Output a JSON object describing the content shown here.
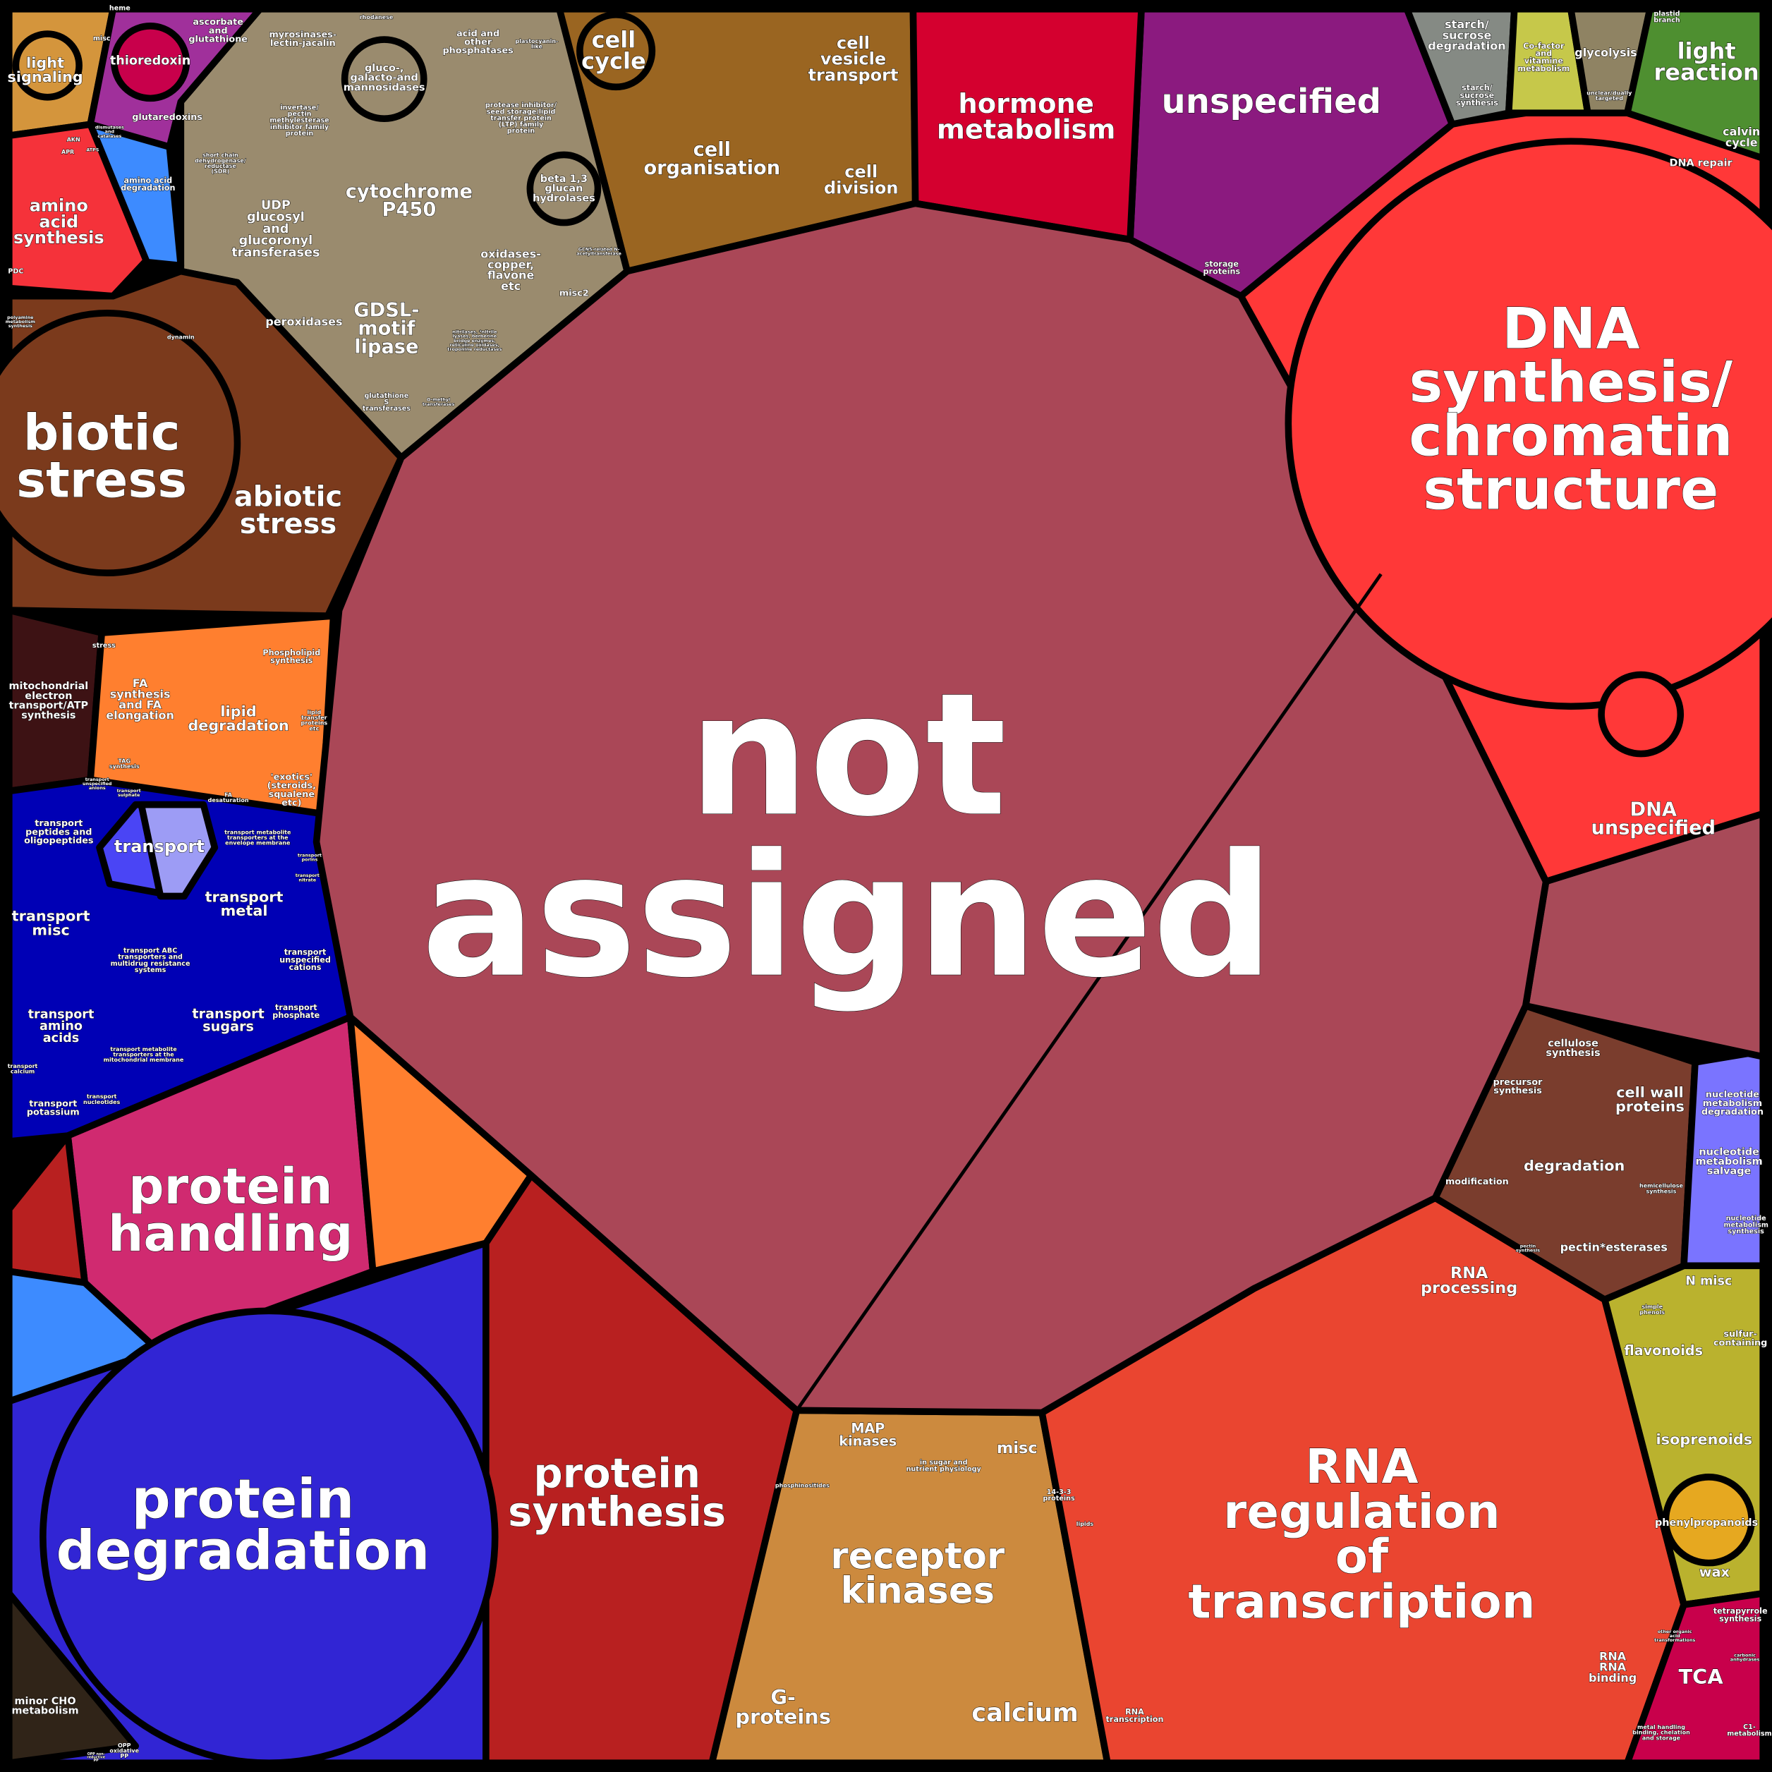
{
  "title": "MapMan functional bin Voronoi treemap",
  "colors": {
    "not_assigned": "#aa4757",
    "dna": "#ff3838",
    "dna_unspecified_band": "#a84a58",
    "unspecified": "#8b1a7f",
    "hormone": "#d4002f",
    "cell": "#9a6521",
    "misc": "#9a8b6e",
    "light_signaling": "#d4953c",
    "redox": "#a0309b",
    "amino_acid_synthesis": "#f5323a",
    "amino_acid_degradation": "#3d8bff",
    "stress": "#7b3a1c",
    "mito": "#3d1214",
    "lipid": "#ff7f2f",
    "transport": "#0000b5",
    "transport_core_a": "#4a45f5",
    "transport_core_b": "#9d9cf5",
    "protein_handling": "#d02a70",
    "protein_degradation": "#3125d4",
    "protein_synthesis": "#b82020",
    "signalling": "#cc8a3e",
    "rna": "#ea4530",
    "cell_wall": "#7a3d2d",
    "nucleotide": "#7a74ff",
    "secondary": "#bab22e",
    "tca": "#c8004b",
    "photosynthesis": "#4e8f30",
    "starch": "#858a84",
    "cofactor": "#c6c84a",
    "glycolysis": "#8f8363",
    "minor_cho": "#302418",
    "opp": "#b04f5c",
    "phenylpropanoids": "#e6a820",
    "tetrapyrrole": "#2f3a22",
    "sulfur": "#8b8b0a"
  },
  "labels": {
    "not_assigned": "not\nassigned",
    "dna_synthesis": "DNA\nsynthesis/\nchromatin\nstructure",
    "dna_unspecified": "DNA\nunspecified",
    "dna_repair": "DNA repair",
    "unspecified": "unspecified",
    "hormone_metabolism": "hormone\nmetabolism",
    "cell_cycle": "cell\ncycle",
    "cell_vesicle_transport": "cell\nvesicle\ntransport",
    "cell_organisation": "cell\norganisation",
    "cell_division": "cell\ndivision",
    "starch_degradation": "starch/\nsucrose\ndegradation",
    "starch_synthesis": "starch/\nsucrose\nsynthesis",
    "cofactor": "Co-factor\nand\nvitamine\nmetabolism",
    "glycolysis": "glycolysis",
    "plastid_branch": "plastid\nbranch",
    "unclear_targeted": "unclear/dually\ntargeted",
    "light_reaction": "light\nreaction",
    "calvin_cycle": "calvin\ncycle",
    "storage_proteins": "storage\nproteins",
    "light_signaling": "light\nsignaling",
    "heme": "heme",
    "misc_redox": "misc",
    "thioredoxin": "thioredoxin",
    "ascorbate": "ascorbate\nand\nglutathione",
    "glutaredoxins": "glutaredoxins",
    "dismutases": "dismutases\nand\ncatalases",
    "akn": "AKN",
    "apr": "APR",
    "atps": "ATPS",
    "amino_acid_synthesis": "amino\nacid\nsynthesis",
    "amino_acid_degradation": "amino acid\ndegradation",
    "pdc": "PDC",
    "polyamine": "polyamine\nmetabolism\nsynthesis",
    "myrosinases": "myrosinases-\nlectin-jacalin",
    "glucosidases": "gluco-,\ngalacto-and\nmannosidases",
    "phosphatases": "acid and\nother\nphosphatases",
    "plastocyanin": "plastocyanin-\nlike",
    "rhodanese": "rhodanese",
    "invertase": "invertase/\npectin\nmethylesterase\ninhibitor family\nprotein",
    "protease_inhibitor": "protease inhibitor/\nseed storage/lipid\ntransfer protein\n(LTP) family\nprotein",
    "sdr": "short chain\ndehydrogenase/\nreductase\n(SDR)",
    "cytochrome_p450": "cytochrome\nP450",
    "udp": "UDP\nglucosyl\nand\nglucoronyl\ntransferases",
    "beta_glucan": "beta 1,3\nglucan\nhydrolases",
    "gcn5": "GCN5-related N-\nacetyltransferase",
    "oxidases": "oxidases-\ncopper,\nflavone\netc",
    "dynamin": "dynamin",
    "misc2": "misc2",
    "peroxidases": "peroxidases",
    "gdsl": "GDSL-\nmotif\nlipase",
    "nitrilases": "nitrilases, *nitrile\nlyases, berberine\nbridge enzymes,\nreticuline oxidases,\ntroponine reductases",
    "glutathione_s": "glutathione\nS\ntransferases",
    "o_methyl": "O-methyl\ntransferases",
    "biotic_stress": "biotic\nstress",
    "abiotic_stress": "abiotic\nstress",
    "stress": "stress",
    "mitochondrial": "mitochondrial\nelectron\ntransport/ATP\nsynthesis",
    "fa_synthesis": "FA\nsynthesis\nand FA\nelongation",
    "lipid_degradation": "lipid\ndegradation",
    "phospholipid": "Phospholipid\nsynthesis",
    "lipid_transfer": "lipid\ntransfer\nproteins\netc",
    "tag_synthesis": "TAG\nsynthesis",
    "exotics": "'exotics'\n(steroids,\nsqualene\netc)",
    "fa_desaturation": "FA\ndesaturation",
    "transport": "transport",
    "transport_unspecified_anions": "transport\nunspecified\nanions",
    "transport_sulphate": "transport\nsulphate",
    "transport_peptides": "transport\npeptides and\noligopeptides",
    "transport_envelope": "transport metabolite\ntransporters at the\nenvelope membrane",
    "transport_porins": "transport\nporins",
    "transport_nitrate": "transport\nnitrate",
    "transport_misc": "transport\nmisc",
    "transport_metal": "transport\nmetal",
    "transport_abc": "transport ABC\ntransporters and\nmultidrug resistance\nsystems",
    "transport_cations": "transport\nunspecified\ncations",
    "transport_amino_acids": "transport\namino\nacids",
    "transport_sugars": "transport\nsugars",
    "transport_phosphate": "transport\nphosphate",
    "transport_mito": "transport metabolite\ntransporters at the\nmitochondrial membrane",
    "transport_calcium": "transport\ncalcium",
    "transport_potassium": "transport\npotassium",
    "transport_nucleotides": "transport\nnucleotides",
    "protein_handling": "protein\nhandling",
    "protein_degradation": "protein\ndegradation",
    "protein_synthesis": "protein\nsynthesis",
    "minor_cho": "minor CHO\nmetabolism",
    "opp_oxidative": "OPP\noxidative\nPP",
    "opp_nonreductive": "OPP non-\nreductive\nPP",
    "map_kinases": "MAP\nkinases",
    "sugar_nutrient": "in sugar and\nnutrient physiology",
    "signalling_misc": "misc",
    "phosphinositides": "phosphinositides",
    "proteins_1433": "14-3-3\nproteins",
    "lipids": "lipids",
    "receptor_kinases": "receptor\nkinases",
    "g_proteins": "G-\nproteins",
    "calcium": "calcium",
    "rna_transcription": "RNA\ntranscription",
    "rna_regulation": "RNA\nregulation\nof\ntranscription",
    "rna_processing": "RNA\nprocessing",
    "rna_binding": "RNA\nRNA\nbinding",
    "cellulose_synthesis": "cellulose\nsynthesis",
    "precursor_synthesis": "precursor\nsynthesis",
    "cell_wall_proteins": "cell wall\nproteins",
    "cw_degradation": "degradation",
    "cw_modification": "modification",
    "hemicellulose": "hemicellulose\nsynthesis",
    "pectin_synthesis": "pectin\nsynthesis",
    "pectin_esterases": "pectin*esterases",
    "nucleotide_degradation": "nucleotide\nmetabolism\ndegradation",
    "nucleotide_salvage": "nucleotide\nmetabolism\nsalvage",
    "nucleotide_synthesis": "nucleotide\nmetabolism\nsynthesis",
    "n_misc": "N misc",
    "simple_phenols": "simple\nphenols",
    "flavonoids": "flavonoids",
    "sulfur_containing": "sulfur-\ncontaining",
    "isoprenoids": "isoprenoids",
    "phenylpropanoids": "phenylpropanoids",
    "wax": "wax",
    "tetrapyrrole": "tetrapyrrole\nsynthesis",
    "other_organic": "other organic\nacid\ntransformations",
    "tca": "TCA",
    "carbonic": "carbonic\nanhydrases",
    "metal_handling": "metal handling\nbinding, chelation\nand storage",
    "c1_metabolism": "C1-\nmetabolism"
  }
}
